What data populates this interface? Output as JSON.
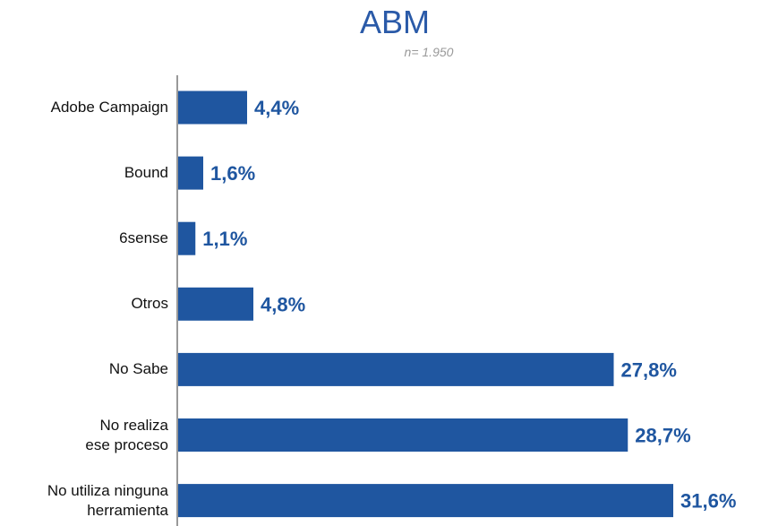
{
  "chart_data": {
    "type": "bar",
    "orientation": "horizontal",
    "title": "ABM",
    "subtitle": "n= 1.950",
    "categories": [
      "Adobe Campaign",
      "Bound",
      "6sense",
      "Otros",
      "No Sabe",
      "No realiza\nese proceso",
      "No utiliza ninguna\nherramienta"
    ],
    "values": [
      4.4,
      1.6,
      1.1,
      4.8,
      27.8,
      28.7,
      31.6
    ],
    "value_labels": [
      "4,4%",
      "1,6%",
      "1,1%",
      "4,8%",
      "27,8%",
      "28,7%",
      "31,6%"
    ],
    "color": "#1f56a0"
  }
}
